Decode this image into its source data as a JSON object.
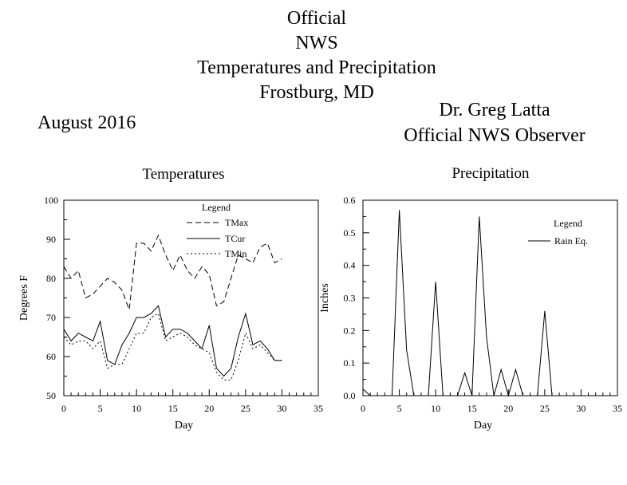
{
  "header": {
    "title_lines": [
      "Official",
      "NWS",
      "Temperatures and Precipitation",
      "Frostburg, MD"
    ],
    "month": "August 2016",
    "observer_lines": [
      "Dr. Greg Latta",
      "Official NWS Observer"
    ]
  },
  "chart_data": [
    {
      "type": "line",
      "title": "Temperatures",
      "xlabel": "Day",
      "ylabel": "Degrees F",
      "xlim": [
        0,
        35
      ],
      "ylim": [
        50,
        100
      ],
      "xticks": [
        0,
        5,
        10,
        15,
        20,
        25,
        30,
        35
      ],
      "yticks": [
        50,
        60,
        70,
        80,
        90,
        100
      ],
      "legend": {
        "title": "Legend",
        "position": "top-right"
      },
      "x": [
        0,
        1,
        2,
        3,
        4,
        5,
        6,
        7,
        8,
        9,
        10,
        11,
        12,
        13,
        14,
        15,
        16,
        17,
        18,
        19,
        20,
        21,
        22,
        23,
        24,
        25,
        26,
        27,
        28,
        29,
        30
      ],
      "series": [
        {
          "name": "TMax",
          "style": "dashed",
          "values": [
            83,
            80,
            82,
            75,
            76,
            78,
            80,
            79,
            77,
            72,
            89,
            89,
            87,
            91,
            86,
            82,
            86,
            82,
            80,
            83,
            81,
            73,
            74,
            80,
            86,
            85,
            84,
            88,
            89,
            84,
            85
          ]
        },
        {
          "name": "TCur",
          "style": "solid",
          "values": [
            67,
            64,
            66,
            65,
            64,
            69,
            59,
            58,
            63,
            66,
            70,
            70,
            71,
            73,
            65,
            67,
            67,
            66,
            64,
            62,
            68,
            57,
            55,
            57,
            65,
            71,
            63,
            64,
            62,
            59,
            59
          ]
        },
        {
          "name": "TMin",
          "style": "dotted",
          "values": [
            65,
            63,
            64,
            64,
            62,
            64,
            57,
            58,
            58,
            62,
            66,
            66,
            70,
            71,
            64,
            65,
            66,
            65,
            63,
            62,
            61,
            56,
            54,
            54,
            59,
            66,
            62,
            63,
            61,
            59,
            59
          ]
        }
      ]
    },
    {
      "type": "line",
      "title": "Precipitation",
      "xlabel": "Day",
      "ylabel": "Inches",
      "xlim": [
        0,
        35
      ],
      "ylim": [
        0,
        0.6
      ],
      "xticks": [
        0,
        5,
        10,
        15,
        20,
        25,
        30,
        35
      ],
      "yticks": [
        "0.0",
        "0.1",
        "0.2",
        "0.3",
        "0.4",
        "0.5",
        "0.6"
      ],
      "legend": {
        "title": "Legend",
        "position": "top-right"
      },
      "x": [
        0,
        1,
        2,
        3,
        4,
        5,
        6,
        7,
        8,
        9,
        10,
        11,
        12,
        13,
        14,
        15,
        16,
        17,
        18,
        19,
        20,
        21,
        22,
        23,
        24,
        25,
        26,
        27,
        28,
        29,
        30
      ],
      "series": [
        {
          "name": "Rain Eq.",
          "style": "solid",
          "values": [
            0.02,
            0,
            0,
            0,
            0,
            0.57,
            0.14,
            0,
            0,
            0,
            0.35,
            0,
            0,
            0,
            0.07,
            0,
            0.55,
            0.18,
            0,
            0.08,
            0,
            0.08,
            0,
            0,
            0,
            0.26,
            0,
            0,
            0,
            0,
            0
          ]
        }
      ]
    }
  ]
}
